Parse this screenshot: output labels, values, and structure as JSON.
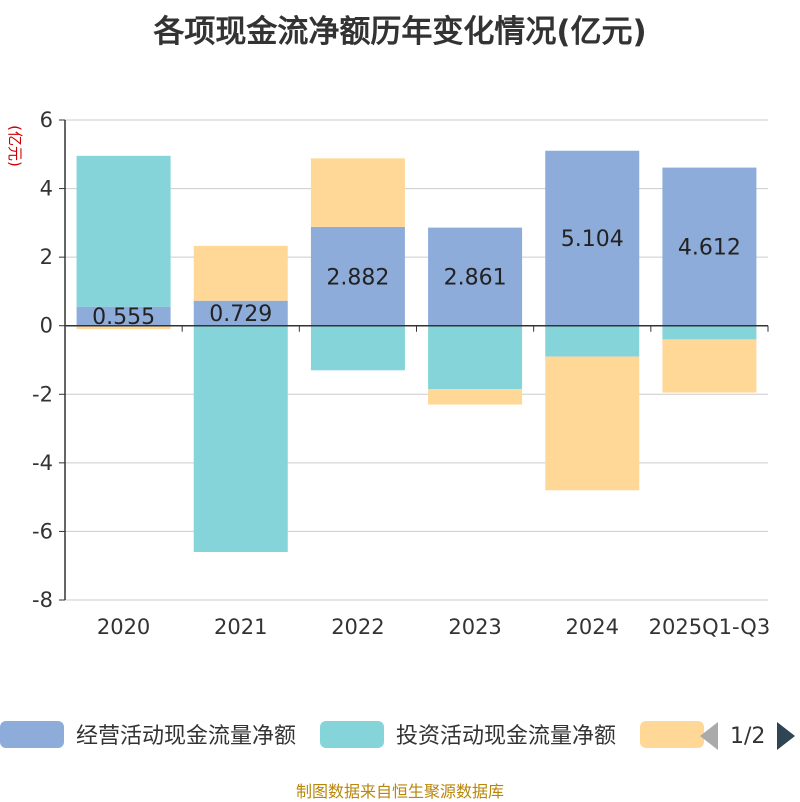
{
  "chart_data": {
    "type": "bar",
    "stacked": true,
    "title": "各项现金流净额历年变化情况(亿元)",
    "ylabel": "(亿元)",
    "ylim": [
      -8,
      6
    ],
    "yticks": [
      6,
      4,
      2,
      0,
      -2,
      -4,
      -6,
      -8
    ],
    "categories": [
      "2020",
      "2021",
      "2022",
      "2023",
      "2024",
      "2025Q1-Q3"
    ],
    "series": [
      {
        "name": "经营活动现金流量净额",
        "color": "#8eacda",
        "values": [
          0.555,
          0.729,
          2.882,
          2.861,
          5.104,
          4.612
        ],
        "labels": [
          "0.555",
          "0.729",
          "2.882",
          "2.861",
          "5.104",
          "4.612"
        ]
      },
      {
        "name": "投资活动现金流量净额",
        "color": "#85d4d9",
        "values": [
          4.4,
          -6.6,
          -1.3,
          -1.85,
          -0.9,
          -0.4
        ]
      },
      {
        "name": "",
        "color": "#ffd898",
        "values": [
          -0.1,
          1.6,
          2.0,
          -0.45,
          -3.9,
          -1.55
        ]
      }
    ]
  },
  "legend": {
    "page": "1/2"
  },
  "footer": "制图数据来自恒生聚源数据库"
}
